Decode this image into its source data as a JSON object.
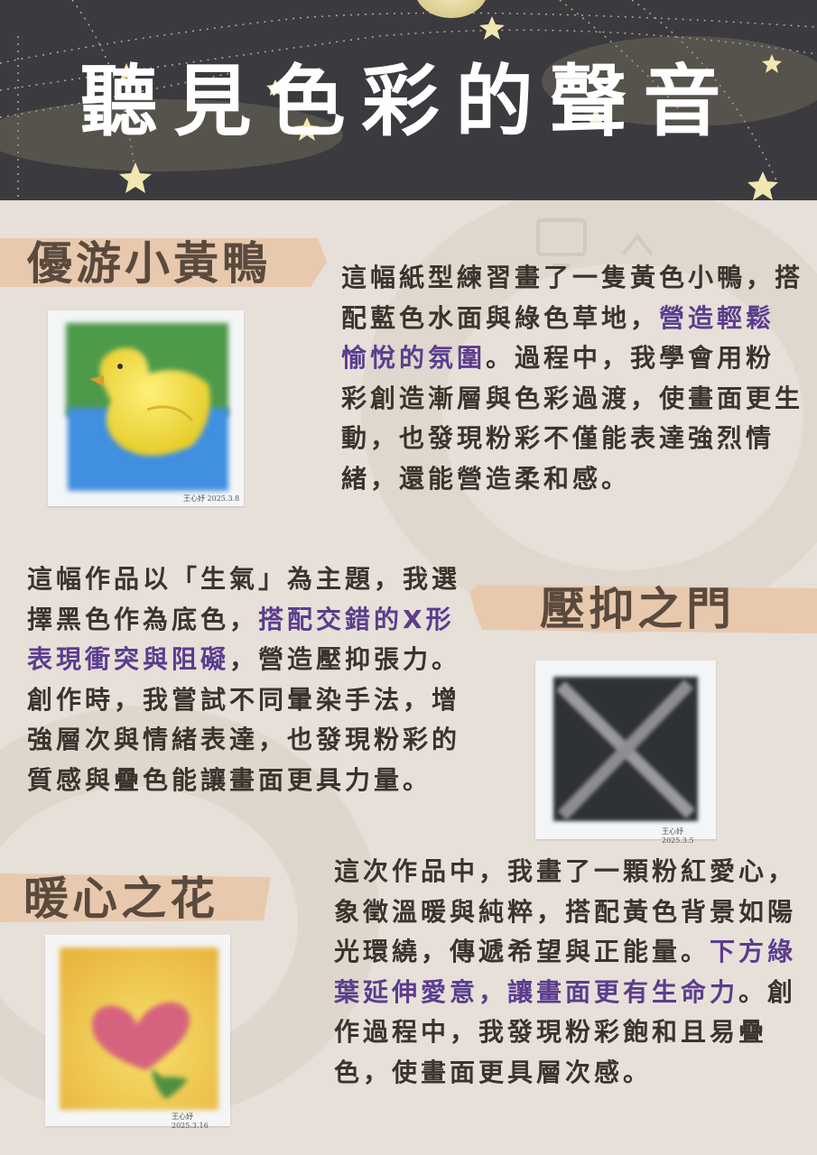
{
  "title": "聽見色彩的聲音",
  "sections": [
    {
      "heading": "優游小黃鴨",
      "text_before": "這幅紙型練習畫了一隻黃色小鴨，搭配藍色水面與綠色草地，",
      "highlight": "營造輕鬆愉悅的氛圍",
      "text_after": "。過程中，我學會用粉彩創造漸層與色彩過渡，使畫面更生動，也發現粉彩不僅能表達強烈情緒，還能營造柔和感。"
    },
    {
      "heading": "壓抑之門",
      "text_before": "這幅作品以「生氣」為主題，我選擇黑色作為底色，",
      "highlight": "搭配交錯的X形表現衝突與阻礙",
      "text_after": "，營造壓抑張力。創作時，我嘗試不同暈染手法，增強層次與情緒表達，也發現粉彩的質感與疊色能讓畫面更具力量。"
    },
    {
      "heading": "暖心之花",
      "text_before": "這次作品中，我畫了一顆粉紅愛心，象徵溫暖與純粹，搭配黃色背景如陽光環繞，傳遞希望與正能量。",
      "highlight": "下方綠葉延伸愛意，讓畫面更有生命力",
      "text_after": "。創作過程中，我發現粉彩飽和且易疊色，使畫面更具層次感。"
    }
  ],
  "signatures": [
    "王心妤 2025.3.8",
    "王心妤 2025.3.5",
    "王心妤 2025.3.16"
  ],
  "icons": {
    "header_deco": "star-icon",
    "background_deco": "computer-icon"
  },
  "colors": {
    "header_bg": "#3b3a3f",
    "page_bg": "#e7e0d9",
    "band": "#e8c9ae",
    "highlight": "#5b3d8d",
    "heading": "#5a4a3e"
  }
}
